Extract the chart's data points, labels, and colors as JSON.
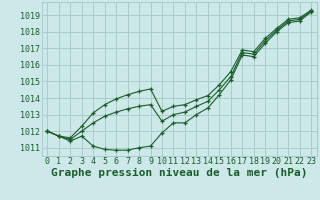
{
  "bg_color": "#cce8e8",
  "grid_color": "#aacccc",
  "line_color": "#1a5c2a",
  "xlabel": "Graphe pression niveau de la mer (hPa)",
  "xlabel_fontsize": 8,
  "tick_fontsize": 6,
  "ylim": [
    1010.5,
    1019.8
  ],
  "xlim": [
    -0.5,
    23.5
  ],
  "yticks": [
    1011,
    1012,
    1013,
    1014,
    1015,
    1016,
    1017,
    1018,
    1019
  ],
  "xticks": [
    0,
    1,
    2,
    3,
    4,
    5,
    6,
    7,
    8,
    9,
    10,
    11,
    12,
    13,
    14,
    15,
    16,
    17,
    18,
    19,
    20,
    21,
    22,
    23
  ],
  "y_low": [
    1012.0,
    1011.7,
    1011.4,
    1011.7,
    1011.1,
    1010.9,
    1010.85,
    1010.85,
    1011.0,
    1011.1,
    1011.9,
    1012.5,
    1012.5,
    1013.0,
    1013.4,
    1014.2,
    1015.1,
    1016.6,
    1016.5,
    1017.3,
    1018.0,
    1018.55,
    1018.65,
    1019.2
  ],
  "y_mid": [
    1012.0,
    1011.7,
    1011.5,
    1012.0,
    1012.5,
    1012.9,
    1013.15,
    1013.35,
    1013.5,
    1013.6,
    1012.6,
    1013.0,
    1013.15,
    1013.5,
    1013.8,
    1014.5,
    1015.3,
    1016.75,
    1016.65,
    1017.45,
    1018.1,
    1018.65,
    1018.75,
    1019.25
  ],
  "y_high": [
    1012.0,
    1011.7,
    1011.6,
    1012.3,
    1013.1,
    1013.6,
    1013.95,
    1014.2,
    1014.4,
    1014.55,
    1013.2,
    1013.5,
    1013.6,
    1013.9,
    1014.15,
    1014.8,
    1015.6,
    1016.9,
    1016.8,
    1017.6,
    1018.2,
    1018.75,
    1018.85,
    1019.3
  ]
}
